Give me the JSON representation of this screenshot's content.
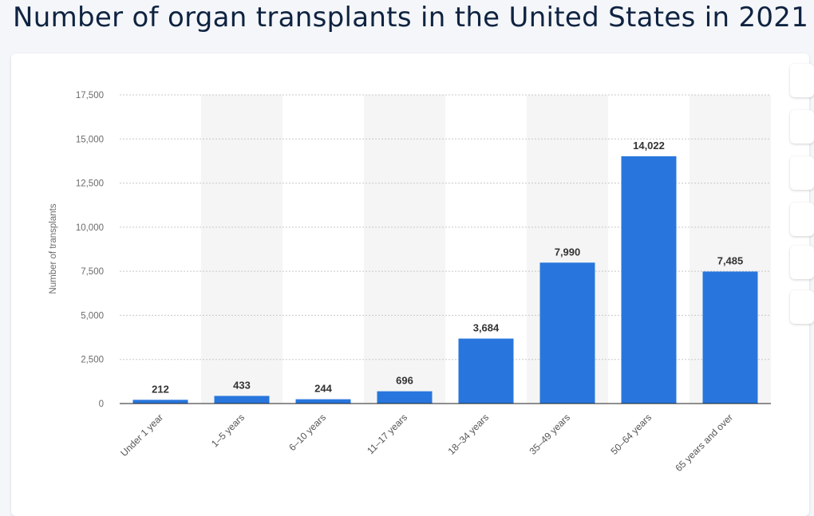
{
  "page": {
    "title": "Number of organ transplants in the United States in 2021"
  },
  "colors": {
    "bar": "#2876dd",
    "band": "#f5f5f5",
    "grid": "#c8c8c8",
    "axis": "#222222"
  },
  "chart_data": {
    "type": "bar",
    "categories": [
      "Under 1 year",
      "1–5 years",
      "6–10 years",
      "11–17 years",
      "18–34 years",
      "35–49 years",
      "50–64 years",
      "65 years and over"
    ],
    "values": [
      212,
      433,
      244,
      696,
      3684,
      7990,
      14022,
      7485
    ],
    "value_labels": [
      "212",
      "433",
      "244",
      "696",
      "3,684",
      "7,990",
      "14,022",
      "7,485"
    ],
    "ylabel": "Number of transplants",
    "ylim": [
      0,
      17500
    ],
    "yticks": [
      0,
      2500,
      5000,
      7500,
      10000,
      12500,
      15000,
      17500
    ],
    "ytick_labels": [
      "0",
      "2,500",
      "5,000",
      "7,500",
      "10,000",
      "12,500",
      "15,000",
      "17,500"
    ],
    "grid": true,
    "alternating_bands": true
  }
}
